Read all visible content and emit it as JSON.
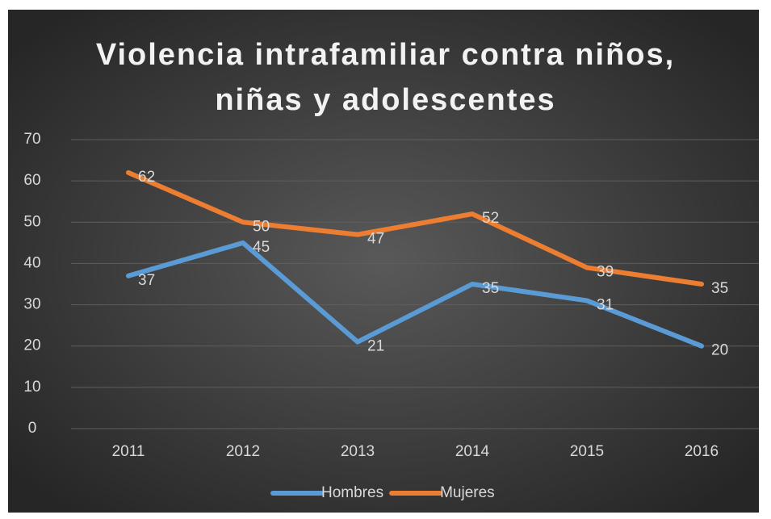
{
  "chart_data": {
    "type": "line",
    "title": "Violencia intrafamiliar contra niños, niñas y adolescentes",
    "categories": [
      "2011",
      "2012",
      "2013",
      "2014",
      "2015",
      "2016"
    ],
    "series": [
      {
        "name": "Hombres",
        "color": "#5b9bd5",
        "values": [
          37,
          45,
          21,
          35,
          31,
          20
        ]
      },
      {
        "name": "Mujeres",
        "color": "#ed7d31",
        "values": [
          62,
          50,
          47,
          52,
          39,
          35
        ]
      }
    ],
    "ylim": [
      0,
      70
    ],
    "yticks": [
      0,
      10,
      20,
      30,
      40,
      50,
      60,
      70
    ],
    "grid": true,
    "legend": "bottom"
  }
}
